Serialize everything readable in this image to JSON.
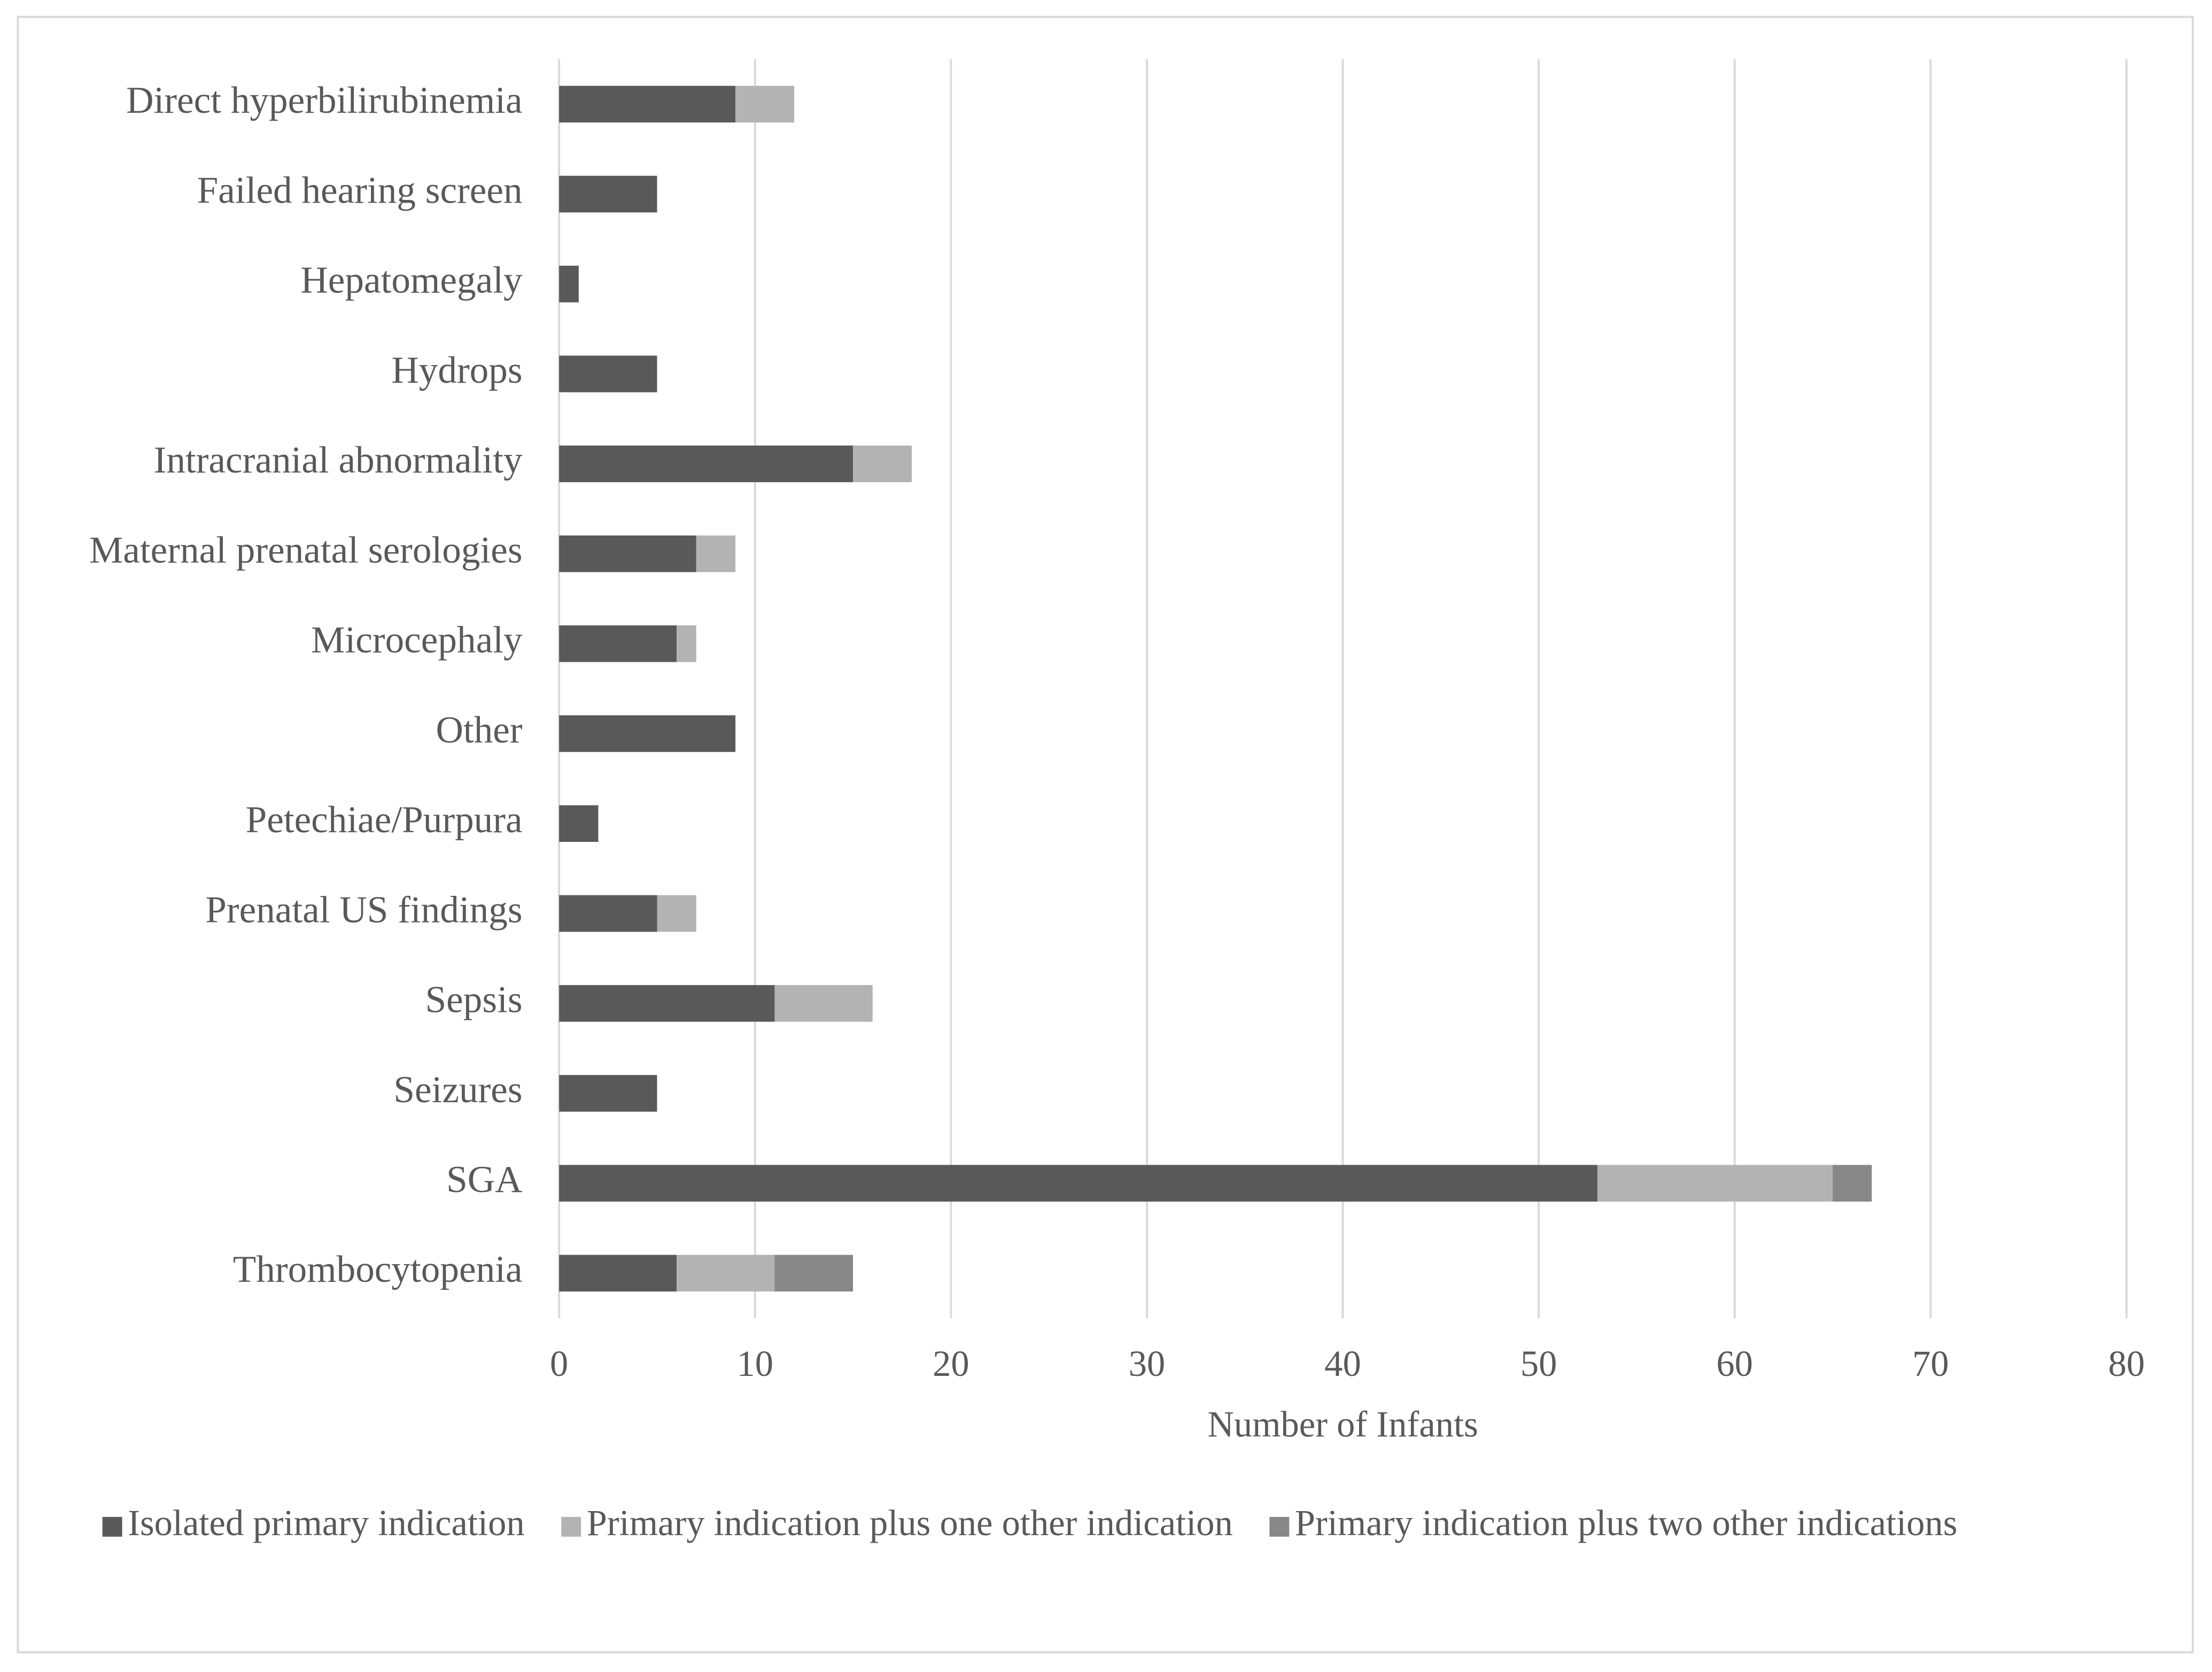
{
  "chart_data": {
    "type": "bar",
    "orientation": "horizontal",
    "stacked": true,
    "x_label": "Number of Infants",
    "categories": [
      "Direct hyperbilirubinemia",
      "Failed hearing screen",
      "Hepatomegaly",
      "Hydrops",
      "Intracranial abnormality",
      "Maternal prenatal serologies",
      "Microcephaly",
      "Other",
      "Petechiae/Purpura",
      "Prenatal US findings",
      "Sepsis",
      "Seizures",
      "SGA",
      "Thrombocytopenia"
    ],
    "series": [
      {
        "name": "Isolated primary indication",
        "color": "#595959",
        "values": [
          9,
          5,
          1,
          5,
          15,
          7,
          6,
          9,
          2,
          5,
          11,
          5,
          53,
          6
        ]
      },
      {
        "name": "Primary indication plus one other indication",
        "color": "#b3b3b3",
        "values": [
          3,
          0,
          0,
          0,
          3,
          2,
          1,
          0,
          0,
          2,
          5,
          0,
          12,
          5
        ]
      },
      {
        "name": "Primary indication plus two other indications",
        "color": "#878787",
        "values": [
          0,
          0,
          0,
          0,
          0,
          0,
          0,
          0,
          0,
          0,
          0,
          0,
          2,
          4
        ]
      }
    ],
    "xlim": [
      0,
      80
    ],
    "xticks": [
      0,
      10,
      20,
      30,
      40,
      50,
      60,
      70,
      80
    ],
    "grid": true,
    "legend": "bottom"
  }
}
